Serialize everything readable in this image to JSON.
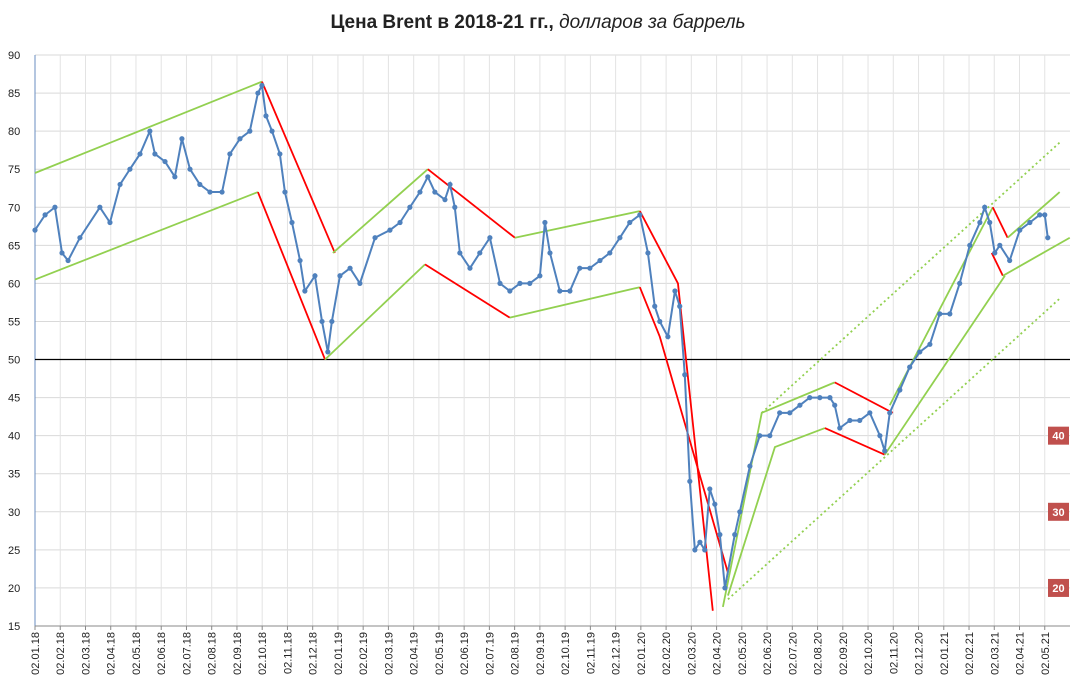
{
  "chart_data": {
    "type": "line",
    "title": "Цена Brent в 2018-21 гг.,",
    "subtitle": "долларов за баррель",
    "color": "#4f81bd",
    "x": [
      0,
      0.4,
      0.79,
      1.07,
      1.31,
      1.78,
      2.57,
      2.97,
      3.37,
      3.76,
      4.16,
      4.55,
      4.75,
      5.15,
      5.54,
      5.82,
      6.14,
      6.53,
      6.93,
      7.41,
      7.72,
      8.12,
      8.51,
      8.83,
      8.99,
      9.15,
      9.39,
      9.7,
      9.9,
      10.18,
      10.5,
      10.69,
      11.09,
      11.37,
      11.6,
      11.76,
      12.08,
      12.48,
      12.87,
      13.47,
      14.06,
      14.46,
      14.85,
      15.25,
      15.56,
      15.84,
      16.24,
      16.44,
      16.63,
      16.83,
      17.23,
      17.62,
      18.02,
      18.42,
      18.81,
      19.21,
      19.6,
      20,
      20.2,
      20.4,
      20.79,
      21.19,
      21.58,
      21.98,
      22.38,
      22.77,
      23.17,
      23.56,
      23.96,
      24.28,
      24.55,
      24.75,
      25.07,
      25.35,
      25.54,
      25.74,
      25.94,
      26.14,
      26.34,
      26.53,
      26.73,
      26.93,
      27.13,
      27.33,
      27.72,
      27.92,
      28.32,
      28.71,
      29.11,
      29.5,
      29.9,
      30.3,
      30.69,
      31.09,
      31.49,
      31.68,
      31.88,
      32.28,
      32.67,
      33.07,
      33.47,
      33.66,
      33.86,
      34.26,
      34.65,
      35.05,
      35.45,
      35.84,
      36.24,
      36.63,
      37.03,
      37.43,
      37.62,
      37.82,
      38.02,
      38.22,
      38.61,
      39.01,
      39.41,
      39.8,
      40,
      40.12
    ],
    "values": [
      67,
      69,
      70,
      64,
      63,
      66,
      70,
      68,
      73,
      75,
      77,
      80,
      77,
      76,
      74,
      79,
      75,
      73,
      72,
      72,
      77,
      79,
      80,
      85,
      86,
      82,
      80,
      77,
      72,
      68,
      63,
      59,
      61,
      55,
      51,
      55,
      61,
      62,
      60,
      66,
      67,
      68,
      70,
      72,
      74,
      72,
      71,
      73,
      70,
      64,
      62,
      64,
      66,
      60,
      59,
      60,
      60,
      61,
      68,
      64,
      59,
      59,
      62,
      62,
      63,
      64,
      66,
      68,
      69,
      64,
      57,
      55,
      53,
      59,
      57,
      48,
      34,
      25,
      26,
      25,
      33,
      31,
      27,
      20,
      27,
      30,
      36,
      40,
      40,
      43,
      43,
      44,
      45,
      45,
      45,
      44,
      41,
      42,
      42,
      43,
      40,
      38,
      43,
      46,
      49,
      51,
      52,
      56,
      56,
      60,
      65,
      68,
      70,
      68,
      64,
      65,
      63,
      67,
      68,
      69,
      69,
      66
    ],
    "xlim": [
      0,
      41
    ],
    "ylim": [
      15,
      90
    ],
    "yticks": [
      15,
      20,
      25,
      30,
      35,
      40,
      45,
      50,
      55,
      60,
      65,
      70,
      75,
      80,
      85,
      90
    ],
    "xticks": [
      {
        "value": 0,
        "label": "02.01.18"
      },
      {
        "value": 1,
        "label": "02.02.18"
      },
      {
        "value": 2,
        "label": "02.03.18"
      },
      {
        "value": 3,
        "label": "02.04.18"
      },
      {
        "value": 4,
        "label": "02.05.18"
      },
      {
        "value": 5,
        "label": "02.06.18"
      },
      {
        "value": 6,
        "label": "02.07.18"
      },
      {
        "value": 7,
        "label": "02.08.18"
      },
      {
        "value": 8,
        "label": "02.09.18"
      },
      {
        "value": 9,
        "label": "02.10.18"
      },
      {
        "value": 10,
        "label": "02.11.18"
      },
      {
        "value": 11,
        "label": "02.12.18"
      },
      {
        "value": 12,
        "label": "02.01.19"
      },
      {
        "value": 13,
        "label": "02.02.19"
      },
      {
        "value": 14,
        "label": "02.03.19"
      },
      {
        "value": 15,
        "label": "02.04.19"
      },
      {
        "value": 16,
        "label": "02.05.19"
      },
      {
        "value": 17,
        "label": "02.06.19"
      },
      {
        "value": 18,
        "label": "02.07.19"
      },
      {
        "value": 19,
        "label": "02.08.19"
      },
      {
        "value": 20,
        "label": "02.09.19"
      },
      {
        "value": 21,
        "label": "02.10.19"
      },
      {
        "value": 22,
        "label": "02.11.19"
      },
      {
        "value": 23,
        "label": "02.12.19"
      },
      {
        "value": 24,
        "label": "02.01.20"
      },
      {
        "value": 25,
        "label": "02.02.20"
      },
      {
        "value": 26,
        "label": "02.03.20"
      },
      {
        "value": 27,
        "label": "02.04.20"
      },
      {
        "value": 28,
        "label": "02.05.20"
      },
      {
        "value": 29,
        "label": "02.06.20"
      },
      {
        "value": 30,
        "label": "02.07.20"
      },
      {
        "value": 31,
        "label": "02.08.20"
      },
      {
        "value": 32,
        "label": "02.09.20"
      },
      {
        "value": 33,
        "label": "02.10.20"
      },
      {
        "value": 34,
        "label": "02.11.20"
      },
      {
        "value": 35,
        "label": "02.12.20"
      },
      {
        "value": 36,
        "label": "02.01.21"
      },
      {
        "value": 37,
        "label": "02.02.21"
      },
      {
        "value": 38,
        "label": "02.03.21"
      },
      {
        "value": 39,
        "label": "02.04.21"
      },
      {
        "value": 40,
        "label": "02.05.21"
      }
    ],
    "grid": true,
    "hline": 50,
    "trend_lines": [
      {
        "color": "#92d050",
        "dashed": false,
        "x": [
          0,
          8.99
        ],
        "y": [
          74.5,
          86.5
        ]
      },
      {
        "color": "#92d050",
        "dashed": false,
        "x": [
          0,
          8.83
        ],
        "y": [
          60.5,
          72
        ]
      },
      {
        "color": "#ff0000",
        "dashed": false,
        "x": [
          8.99,
          11.88
        ],
        "y": [
          86.5,
          64
        ]
      },
      {
        "color": "#ff0000",
        "dashed": false,
        "x": [
          8.83,
          11.49
        ],
        "y": [
          72,
          50
        ]
      },
      {
        "color": "#92d050",
        "dashed": false,
        "x": [
          11.8,
          15.56
        ],
        "y": [
          64,
          75
        ]
      },
      {
        "color": "#92d050",
        "dashed": false,
        "x": [
          11.49,
          15.45
        ],
        "y": [
          50,
          62.5
        ]
      },
      {
        "color": "#ff0000",
        "dashed": false,
        "x": [
          15.56,
          19.01
        ],
        "y": [
          75,
          66
        ]
      },
      {
        "color": "#ff0000",
        "dashed": false,
        "x": [
          15.45,
          18.81
        ],
        "y": [
          62.5,
          55.5
        ]
      },
      {
        "color": "#92d050",
        "dashed": false,
        "x": [
          19.01,
          23.96
        ],
        "y": [
          66,
          69.5
        ]
      },
      {
        "color": "#92d050",
        "dashed": false,
        "x": [
          18.81,
          23.96
        ],
        "y": [
          55.5,
          59.5
        ]
      },
      {
        "color": "#ff0000",
        "dashed": false,
        "x": [
          23.96,
          25.47,
          26.85
        ],
        "y": [
          69.5,
          60,
          17
        ]
      },
      {
        "color": "#ff0000",
        "dashed": false,
        "x": [
          23.96,
          24.75,
          27.45
        ],
        "y": [
          59.5,
          53,
          22
        ]
      },
      {
        "color": "#92d050",
        "dashed": false,
        "x": [
          27.25,
          28.79,
          31.68
        ],
        "y": [
          17.5,
          43,
          47
        ]
      },
      {
        "color": "#92d050",
        "dashed": false,
        "x": [
          27.45,
          29.31,
          31.29
        ],
        "y": [
          19,
          38.5,
          41
        ]
      },
      {
        "color": "#ff0000",
        "dashed": false,
        "x": [
          31.68,
          33.98
        ],
        "y": [
          47,
          43
        ]
      },
      {
        "color": "#ff0000",
        "dashed": false,
        "x": [
          31.29,
          33.66
        ],
        "y": [
          41,
          37.5
        ]
      },
      {
        "color": "#92d050",
        "dashed": false,
        "x": [
          33.66,
          38.42
        ],
        "y": [
          37.5,
          61
        ]
      },
      {
        "color": "#92d050",
        "dashed": false,
        "x": [
          33.86,
          37.94
        ],
        "y": [
          44,
          70
        ]
      },
      {
        "color": "#ff0000",
        "dashed": false,
        "x": [
          37.94,
          38.53
        ],
        "y": [
          70,
          66
        ]
      },
      {
        "color": "#ff0000",
        "dashed": false,
        "x": [
          37.9,
          38.34
        ],
        "y": [
          64,
          61
        ]
      },
      {
        "color": "#92d050",
        "dashed": false,
        "x": [
          38.34,
          40.99
        ],
        "y": [
          61,
          66
        ]
      },
      {
        "color": "#92d050",
        "dashed": false,
        "x": [
          38.53,
          40.59
        ],
        "y": [
          66,
          72
        ]
      },
      {
        "color": "#92d050",
        "dashed": true,
        "x": [
          27.45,
          40.59
        ],
        "y": [
          18.5,
          58
        ]
      },
      {
        "color": "#92d050",
        "dashed": true,
        "x": [
          28.79,
          40.59
        ],
        "y": [
          43,
          78.5
        ]
      }
    ],
    "annotations": [
      {
        "text": "40",
        "y": 40
      },
      {
        "text": "30",
        "y": 30
      },
      {
        "text": "20",
        "y": 20
      }
    ]
  }
}
